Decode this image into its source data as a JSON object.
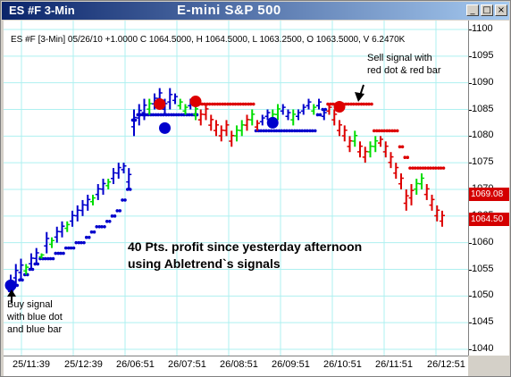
{
  "window": {
    "app_title": "ES #F 3-Min",
    "chart_title": "E-mini  S&P 500",
    "buttons": [
      "_",
      "□",
      "×"
    ]
  },
  "info_line": "ES #F [3-Min] 05/26/10  +1.0000 C 1064.5000, H 1064.5000, L 1063.2500, O 1063.5000, V 6.2470K",
  "annotations": {
    "sell": "Sell signal with\nred dot & red bar",
    "buy": "Buy signal\nwith blue dot\nand blue bar",
    "profit": "40 Pts. profit since yesterday afternoon\nusing Abletrend`s signals"
  },
  "colors": {
    "up_trend": "#0000cc",
    "down_trend": "#dd0000",
    "neutral": "#00dd00",
    "grid": "#aef0f0",
    "price_box": "#d40000"
  },
  "chart_data": {
    "type": "bar",
    "title": "E-mini  S&P 500",
    "ylim": [
      1040,
      1100
    ],
    "y_ticks": [
      1040,
      1045,
      1050,
      1055,
      1060,
      1065,
      1070,
      1075,
      1080,
      1085,
      1090,
      1095,
      1100
    ],
    "x_ticks": [
      "25/11:39",
      "25/12:39",
      "26/06:51",
      "26/07:51",
      "26/08:51",
      "26/09:51",
      "26/10:51",
      "26/11:51",
      "26/12:51"
    ],
    "price_labels": [
      {
        "label": "1069.08",
        "value": 1069.08
      },
      {
        "label": "1064.50",
        "value": 1064.5
      }
    ],
    "bars": [
      [
        1050,
        1054,
        "b"
      ],
      [
        1052,
        1056,
        "b"
      ],
      [
        1053,
        1057,
        "b"
      ],
      [
        1054,
        1056,
        "g"
      ],
      [
        1055,
        1058,
        "b"
      ],
      [
        1056,
        1059,
        "b"
      ],
      [
        1057,
        1058,
        "g"
      ],
      [
        1058,
        1062,
        "b"
      ],
      [
        1059,
        1061,
        "g"
      ],
      [
        1060,
        1063,
        "b"
      ],
      [
        1061,
        1064,
        "b"
      ],
      [
        1062,
        1064,
        "g"
      ],
      [
        1063,
        1066,
        "b"
      ],
      [
        1064,
        1067,
        "b"
      ],
      [
        1065,
        1068,
        "b"
      ],
      [
        1066,
        1069,
        "b"
      ],
      [
        1067,
        1069,
        "g"
      ],
      [
        1068,
        1071,
        "b"
      ],
      [
        1069,
        1072,
        "b"
      ],
      [
        1070,
        1072,
        "g"
      ],
      [
        1071,
        1074,
        "b"
      ],
      [
        1072,
        1075,
        "b"
      ],
      [
        1073,
        1075,
        "b"
      ],
      [
        1070,
        1074,
        "b"
      ],
      [
        1080,
        1085,
        "b"
      ],
      [
        1082,
        1086,
        "b"
      ],
      [
        1083,
        1087,
        "b"
      ],
      [
        1084,
        1087,
        "g"
      ],
      [
        1085,
        1088,
        "b"
      ],
      [
        1086,
        1089,
        "b"
      ],
      [
        1084,
        1087,
        "b"
      ],
      [
        1085,
        1089,
        "b"
      ],
      [
        1086,
        1088,
        "b"
      ],
      [
        1085,
        1087,
        "g"
      ],
      [
        1084,
        1086,
        "g"
      ],
      [
        1085,
        1087,
        "b"
      ],
      [
        1083,
        1086,
        "g"
      ],
      [
        1082,
        1085,
        "r"
      ],
      [
        1083,
        1086,
        "r"
      ],
      [
        1081,
        1084,
        "r"
      ],
      [
        1080,
        1083,
        "r"
      ],
      [
        1079,
        1082,
        "r"
      ],
      [
        1080,
        1083,
        "r"
      ],
      [
        1078,
        1081,
        "r"
      ],
      [
        1079,
        1082,
        "g"
      ],
      [
        1080,
        1083,
        "g"
      ],
      [
        1081,
        1084,
        "r"
      ],
      [
        1082,
        1085,
        "g"
      ],
      [
        1081,
        1083,
        "r"
      ],
      [
        1082,
        1084,
        "b"
      ],
      [
        1083,
        1085,
        "b"
      ],
      [
        1082,
        1085,
        "g"
      ],
      [
        1083,
        1086,
        "g"
      ],
      [
        1084,
        1086,
        "b"
      ],
      [
        1083,
        1085,
        "b"
      ],
      [
        1082,
        1085,
        "g"
      ],
      [
        1083,
        1085,
        "b"
      ],
      [
        1084,
        1086,
        "b"
      ],
      [
        1085,
        1087,
        "b"
      ],
      [
        1084,
        1086,
        "g"
      ],
      [
        1085,
        1087,
        "b"
      ],
      [
        1083,
        1085,
        "b"
      ],
      [
        1084,
        1086,
        "r"
      ],
      [
        1082,
        1085,
        "r"
      ],
      [
        1080,
        1083,
        "r"
      ],
      [
        1079,
        1082,
        "r"
      ],
      [
        1077,
        1080,
        "r"
      ],
      [
        1078,
        1081,
        "g"
      ],
      [
        1076,
        1079,
        "r"
      ],
      [
        1075,
        1078,
        "r"
      ],
      [
        1076,
        1079,
        "g"
      ],
      [
        1077,
        1080,
        "g"
      ],
      [
        1078,
        1080,
        "r"
      ],
      [
        1076,
        1079,
        "r"
      ],
      [
        1074,
        1077,
        "r"
      ],
      [
        1072,
        1075,
        "r"
      ],
      [
        1070,
        1073,
        "r"
      ],
      [
        1066,
        1070,
        "r"
      ],
      [
        1067,
        1071,
        "r"
      ],
      [
        1069,
        1072,
        "g"
      ],
      [
        1070,
        1073,
        "g"
      ],
      [
        1068,
        1071,
        "r"
      ],
      [
        1066,
        1069,
        "r"
      ],
      [
        1064,
        1067,
        "r"
      ],
      [
        1063,
        1066,
        "r"
      ]
    ],
    "trend_dots": [
      [
        1051,
        "b"
      ],
      [
        1052,
        "b"
      ],
      [
        1053,
        "b"
      ],
      [
        1054,
        "b"
      ],
      [
        1055,
        "b"
      ],
      [
        1056,
        "b"
      ],
      [
        1057,
        "b"
      ],
      [
        1057,
        "b"
      ],
      [
        1057,
        "b"
      ],
      [
        1058,
        "b"
      ],
      [
        1058,
        "b"
      ],
      [
        1059,
        "b"
      ],
      [
        1059,
        "b"
      ],
      [
        1060,
        "b"
      ],
      [
        1060,
        "b"
      ],
      [
        1061,
        "b"
      ],
      [
        1062,
        "b"
      ],
      [
        1063,
        "b"
      ],
      [
        1063,
        "b"
      ],
      [
        1064,
        "b"
      ],
      [
        1065,
        "b"
      ],
      [
        1066,
        "b"
      ],
      [
        1068,
        "b"
      ],
      [
        1070,
        "b"
      ],
      [
        1083,
        "b"
      ],
      [
        1084,
        "b"
      ],
      [
        1084,
        "b"
      ],
      [
        1084,
        "b"
      ],
      [
        1084,
        "b"
      ],
      [
        1084,
        "b"
      ],
      [
        1084,
        "b"
      ],
      [
        1084,
        "b"
      ],
      [
        1084,
        "b"
      ],
      [
        1084,
        "b"
      ],
      [
        1084,
        "b"
      ],
      [
        1084,
        "b"
      ],
      [
        1084,
        "b"
      ],
      [
        1086,
        "r"
      ],
      [
        1086,
        "r"
      ],
      [
        1086,
        "r"
      ],
      [
        1086,
        "r"
      ],
      [
        1086,
        "r"
      ],
      [
        1086,
        "r"
      ],
      [
        1086,
        "r"
      ],
      [
        1086,
        "r"
      ],
      [
        1086,
        "r"
      ],
      [
        1086,
        "r"
      ],
      [
        1086,
        "r"
      ],
      [
        1081,
        "b"
      ],
      [
        1081,
        "b"
      ],
      [
        1081,
        "b"
      ],
      [
        1081,
        "b"
      ],
      [
        1081,
        "b"
      ],
      [
        1081,
        "b"
      ],
      [
        1081,
        "b"
      ],
      [
        1081,
        "b"
      ],
      [
        1081,
        "b"
      ],
      [
        1081,
        "b"
      ],
      [
        1081,
        "b"
      ],
      [
        1081,
        "b"
      ],
      [
        1084,
        "b"
      ],
      [
        1085,
        "b"
      ],
      [
        1086,
        "r"
      ],
      [
        1086,
        "r"
      ],
      [
        1086,
        "r"
      ],
      [
        1086,
        "r"
      ],
      [
        1086,
        "r"
      ],
      [
        1086,
        "r"
      ],
      [
        1086,
        "r"
      ],
      [
        1086,
        "r"
      ],
      [
        1086,
        "r"
      ],
      [
        1081,
        "r"
      ],
      [
        1081,
        "r"
      ],
      [
        1081,
        "r"
      ],
      [
        1081,
        "r"
      ],
      [
        1081,
        "r"
      ],
      [
        1078,
        "r"
      ],
      [
        1076,
        "r"
      ],
      [
        1074,
        "r"
      ],
      [
        1074,
        "r"
      ],
      [
        1074,
        "r"
      ],
      [
        1074,
        "r"
      ],
      [
        1074,
        "r"
      ],
      [
        1074,
        "r"
      ],
      [
        1074,
        "r"
      ]
    ],
    "signal_dots": [
      {
        "bar": 0,
        "value": 1052,
        "color": "b"
      },
      {
        "bar": 29,
        "value": 1086,
        "color": "r"
      },
      {
        "bar": 30,
        "value": 1081.5,
        "color": "b"
      },
      {
        "bar": 36,
        "value": 1086.5,
        "color": "r"
      },
      {
        "bar": 51,
        "value": 1082.5,
        "color": "b"
      },
      {
        "bar": 64,
        "value": 1085.5,
        "color": "r"
      }
    ]
  }
}
